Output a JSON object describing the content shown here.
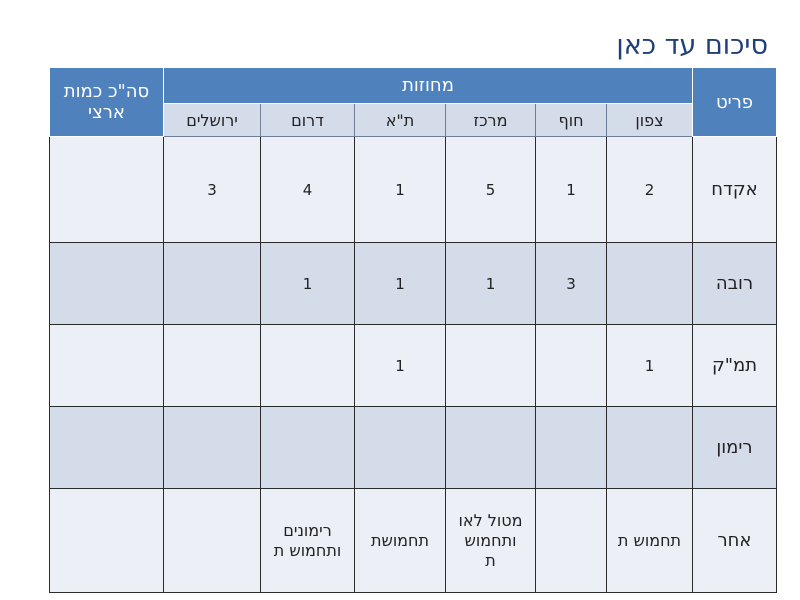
{
  "title": "סיכום עד כאן",
  "table": {
    "total_header": "סה\"כ כמות ארצי",
    "districts_header": "מחוזות",
    "item_header": "פריט",
    "districts": [
      "ירושלים",
      "דרום",
      "ת\"א",
      "מרכז",
      "חוף",
      "צפון"
    ],
    "rows": [
      {
        "label": "אקדח",
        "total": "",
        "values": [
          "3",
          "4",
          "1",
          "5",
          "1",
          "2"
        ]
      },
      {
        "label": "רובה",
        "total": "",
        "values": [
          "",
          "1",
          "1",
          "1",
          "3",
          ""
        ]
      },
      {
        "label": "תמ\"ק",
        "total": "",
        "values": [
          "",
          "",
          "1",
          "",
          "",
          "1"
        ]
      },
      {
        "label": "רימון",
        "total": "",
        "values": [
          "",
          "",
          "",
          "",
          "",
          ""
        ]
      },
      {
        "label": "אחר",
        "total": "",
        "values": [
          "",
          "רימונים ותחמוש ת",
          "תחמושת",
          "מטול לאו ותחמוש ת",
          "",
          "תחמוש ת"
        ]
      }
    ]
  },
  "colors": {
    "header_bg": "#4f81bd",
    "subheader_bg": "#d4dbe9",
    "row_light": "#eceff5",
    "row_dark": "#d4dbe9",
    "title_color": "#1f3f77"
  }
}
